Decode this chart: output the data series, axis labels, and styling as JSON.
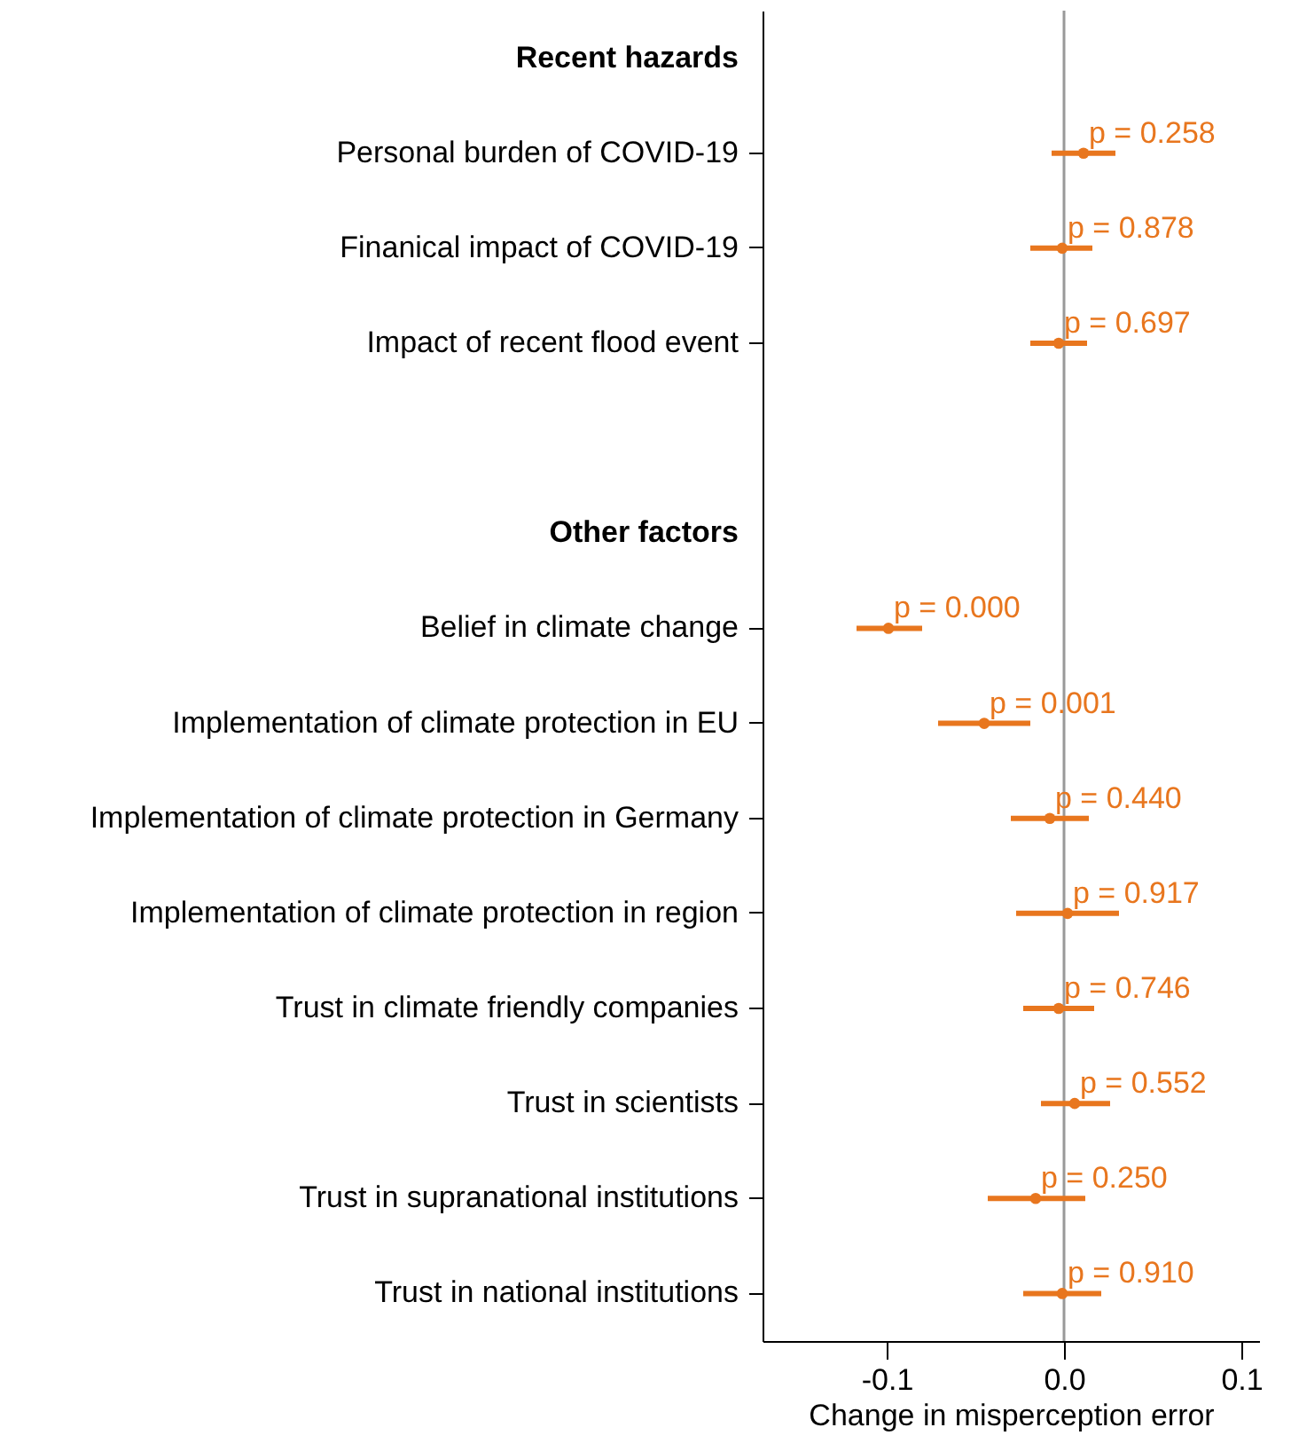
{
  "chart_data": {
    "type": "scatter",
    "orientation": "horizontal",
    "xlabel": "Change in misperception error",
    "categories": [
      "Recent hazards",
      "Personal burden of COVID-19",
      "Finanical impact of COVID-19",
      "Impact of recent flood event",
      null,
      "Other factors",
      "Belief in climate change",
      "Implementation of climate protection in EU",
      "Implementation of climate protection in Germany",
      "Implementation of climate protection in region",
      "Trust in climate friendly companies",
      "Trust in scientists",
      "Trust in supranational institutions",
      "Trust in national institutions"
    ],
    "values": [
      null,
      0.011,
      -0.001,
      -0.003,
      null,
      null,
      -0.099,
      -0.045,
      -0.008,
      0.002,
      -0.003,
      0.006,
      -0.016,
      -0.001
    ],
    "errors": [
      null,
      [
        -0.007,
        0.029
      ],
      [
        -0.019,
        0.016
      ],
      [
        -0.019,
        0.013
      ],
      null,
      null,
      [
        -0.117,
        -0.08
      ],
      [
        -0.071,
        -0.019
      ],
      [
        -0.03,
        0.014
      ],
      [
        -0.027,
        0.031
      ],
      [
        -0.023,
        0.017
      ],
      [
        -0.013,
        0.026
      ],
      [
        -0.043,
        0.012
      ],
      [
        -0.023,
        0.021
      ]
    ],
    "annotations": [
      {
        "text": "p = 0.258",
        "x": 0.011,
        "y": "Personal burden of COVID-19"
      },
      {
        "text": "p = 0.878",
        "x": -0.001,
        "y": "Finanical impact of COVID-19"
      },
      {
        "text": "p = 0.697",
        "x": -0.003,
        "y": "Impact of recent flood event"
      },
      {
        "text": "p = 0.000",
        "x": -0.099,
        "y": "Belief in climate change"
      },
      {
        "text": "p = 0.001",
        "x": -0.045,
        "y": "Implementation of climate protection in EU"
      },
      {
        "text": "p = 0.440",
        "x": -0.008,
        "y": "Implementation of climate protection in Germany"
      },
      {
        "text": "p = 0.917",
        "x": 0.002,
        "y": "Implementation of climate protection in region"
      },
      {
        "text": "p = 0.746",
        "x": -0.003,
        "y": "Trust in climate friendly companies"
      },
      {
        "text": "p = 0.552",
        "x": 0.006,
        "y": "Trust in scientists"
      },
      {
        "text": "p = 0.250",
        "x": -0.016,
        "y": "Trust in supranational institutions"
      },
      {
        "text": "p = 0.910",
        "x": -0.001,
        "y": "Trust in national institutions"
      }
    ],
    "color": "#e8761e",
    "marker": "circle",
    "xlim": [
      -0.17,
      0.11
    ],
    "xticks": [
      -0.1,
      {
        "value": 0,
        "label": "0.0"
      },
      0.1
    ],
    "ref_lines": [
      {
        "axis": "x",
        "value": 0,
        "color": "#999999"
      }
    ],
    "grid": false
  }
}
